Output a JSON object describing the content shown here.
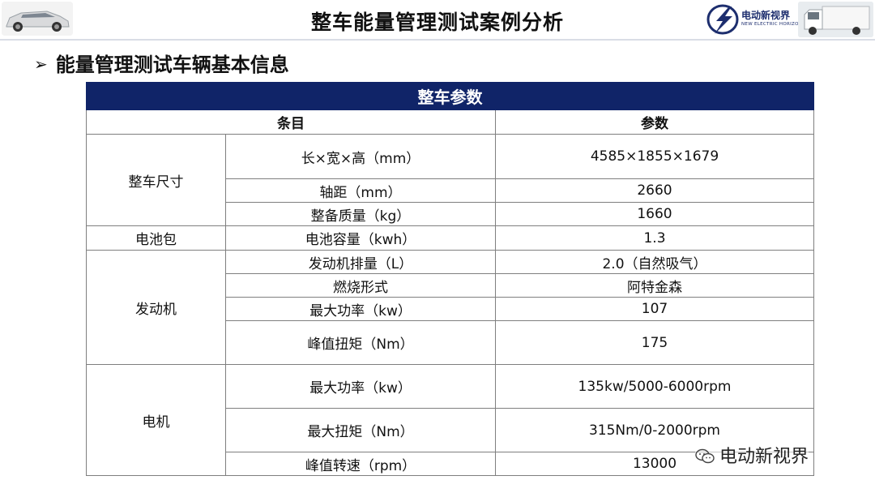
{
  "header": {
    "title": "整车能量管理测试案例分析",
    "brand_name": "电动新视界",
    "brand_en": "NEW ELECTRIC HORIZON"
  },
  "section": {
    "heading": "能量管理测试车辆基本信息"
  },
  "table": {
    "banner": "整车参数",
    "col_item": "条目",
    "col_param": "参数",
    "groups": [
      {
        "name": "整车尺寸",
        "rows": [
          {
            "item": "长×宽×高（mm）",
            "value": "4585×1855×1679"
          },
          {
            "item": "轴距（mm）",
            "value": "2660"
          },
          {
            "item": "整备质量（kg）",
            "value": "1660"
          }
        ]
      },
      {
        "name": "电池包",
        "rows": [
          {
            "item": "电池容量（kwh）",
            "value": "1.3"
          }
        ]
      },
      {
        "name": "发动机",
        "rows": [
          {
            "item": "发动机排量（L）",
            "value": "2.0（自然吸气）"
          },
          {
            "item": "燃烧形式",
            "value": "阿特金森"
          },
          {
            "item": "最大功率（kw）",
            "value": "107"
          },
          {
            "item": "峰值扭矩（Nm）",
            "value": "175"
          }
        ]
      },
      {
        "name": "电机",
        "rows": [
          {
            "item": "最大功率（kw）",
            "value": "135kw/5000-6000rpm"
          },
          {
            "item": "最大扭矩（Nm）",
            "value": "315Nm/0-2000rpm"
          },
          {
            "item": "峰值转速（rpm）",
            "value": "13000"
          }
        ]
      }
    ]
  },
  "watermark": {
    "text": "电动新视界",
    "icon": "wechat-icon"
  },
  "colors": {
    "banner_bg": "#102468",
    "brand": "#1d2e6e"
  }
}
